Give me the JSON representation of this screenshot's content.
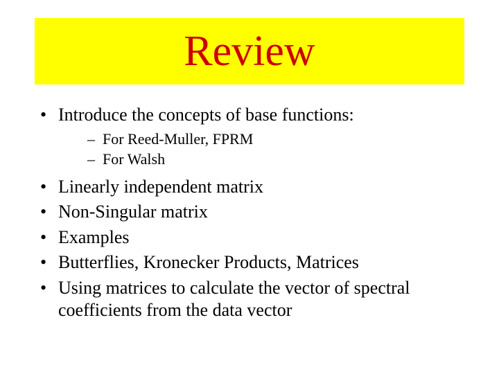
{
  "slide": {
    "title": "Review",
    "title_box_bg": "#ffff00",
    "title_color": "#cc0000",
    "body_color": "#000000",
    "bullets": [
      {
        "text": "Introduce the concepts of base functions:",
        "sub": [
          "For Reed-Muller, FPRM",
          "For Walsh"
        ]
      },
      {
        "text": "Linearly independent matrix"
      },
      {
        "text": "Non-Singular matrix"
      },
      {
        "text": "Examples"
      },
      {
        "text": "Butterflies, Kronecker Products, Matrices"
      },
      {
        "text": "Using matrices to calculate the vector of spectral coefficients from the data vector"
      }
    ]
  }
}
